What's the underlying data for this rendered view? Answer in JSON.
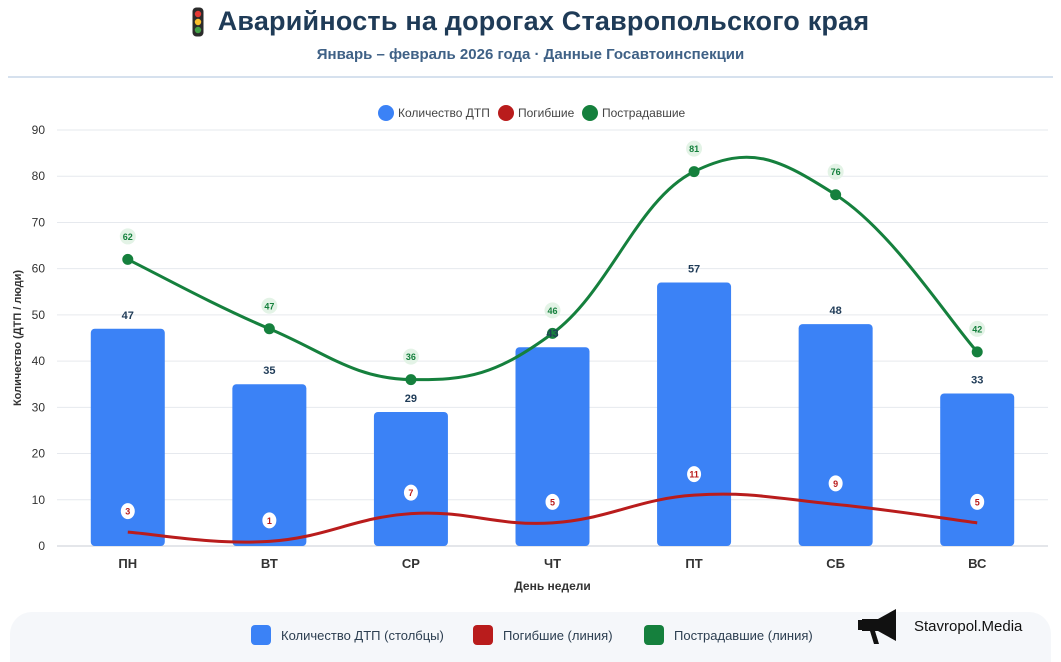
{
  "header": {
    "title": "Аварийность на дорогах Ставропольского края",
    "subtitle": "Январь – февраль 2026 года · Данные Госавтоинспекции"
  },
  "brand": {
    "name": "Stavropol.Media"
  },
  "bottom_legend": [
    {
      "label": "Количество ДТП (столбцы)",
      "color": "#3b82f6"
    },
    {
      "label": "Погибшие (линия)",
      "color": "#b91c1c"
    },
    {
      "label": "Пострадавшие (линия)",
      "color": "#15803d"
    }
  ],
  "chart_data": {
    "type": "bar",
    "categories": [
      "ПН",
      "ВТ",
      "СР",
      "ЧТ",
      "ПТ",
      "СБ",
      "ВС"
    ],
    "xlabel": "День недели",
    "ylabel": "Количество (ДТП / люди)",
    "ylim": [
      0,
      90
    ],
    "yticks": [
      0,
      10,
      20,
      30,
      40,
      50,
      60,
      70,
      80,
      90
    ],
    "grid": true,
    "legend_position": "top-center",
    "series": [
      {
        "name": "Количество ДТП",
        "kind": "bar",
        "color": "#3b82f6",
        "values": [
          47,
          35,
          29,
          43,
          57,
          48,
          33
        ]
      },
      {
        "name": "Погибшие",
        "kind": "line",
        "color": "#b91c1c",
        "values": [
          3,
          1,
          7,
          5,
          11,
          9,
          5
        ]
      },
      {
        "name": "Пострадавшие",
        "kind": "line",
        "color": "#15803d",
        "values": [
          62,
          47,
          36,
          46,
          81,
          76,
          42
        ]
      }
    ]
  }
}
